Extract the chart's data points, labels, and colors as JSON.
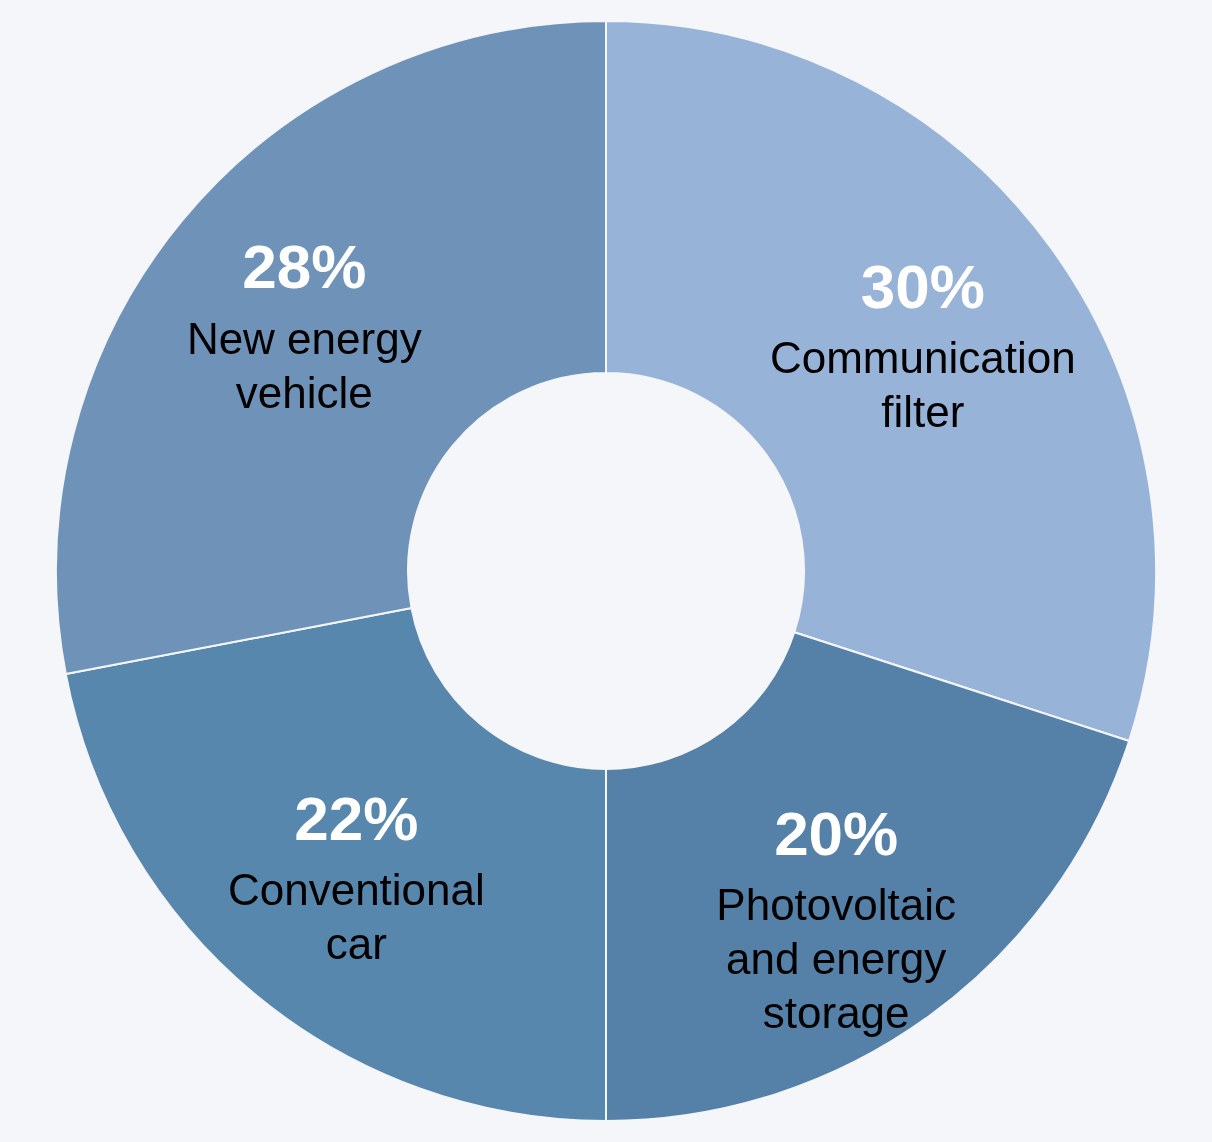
{
  "chart_data": {
    "type": "donut",
    "categories": [
      "Communication filter",
      "Photovoltaic and energy storage",
      "Conventional car",
      "New energy vehicle"
    ],
    "values": [
      30,
      20,
      22,
      28
    ],
    "value_labels": [
      "30%",
      "20%",
      "22%",
      "28%"
    ],
    "colors": [
      "#98b3d8",
      "#5580a8",
      "#5887ad",
      "#6f93b8"
    ]
  }
}
